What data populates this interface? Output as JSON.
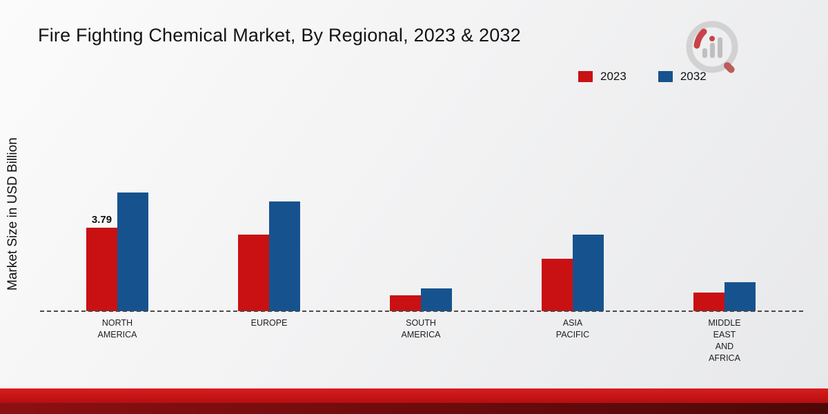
{
  "title": "Fire Fighting Chemical Market, By Regional, 2023 & 2032",
  "ylabel": "Market Size in USD Billion",
  "legend": [
    {
      "label": "2023",
      "color": "#c91113"
    },
    {
      "label": "2032",
      "color": "#16538e"
    }
  ],
  "chart_data": {
    "type": "bar",
    "title": "Fire Fighting Chemical Market, By Regional, 2023 & 2032",
    "xlabel": "",
    "ylabel": "Market Size in USD Billion",
    "ylim": [
      0,
      6.25
    ],
    "grid": false,
    "legend_position": "top-right",
    "baseline_style": "dashed",
    "categories": [
      "NORTH\nAMERICA",
      "EUROPE",
      "SOUTH\nAMERICA",
      "ASIA\nPACIFIC",
      "MIDDLE\nEAST\nAND\nAFRICA"
    ],
    "series": [
      {
        "name": "2023",
        "color": "#c91113",
        "values": [
          3.79,
          3.48,
          0.72,
          2.38,
          0.85
        ]
      },
      {
        "name": "2032",
        "color": "#16538e",
        "values": [
          5.36,
          4.97,
          1.03,
          3.47,
          1.31
        ]
      }
    ],
    "data_labels": [
      {
        "series": "2023",
        "category_index": 0,
        "text": "3.79"
      }
    ]
  }
}
